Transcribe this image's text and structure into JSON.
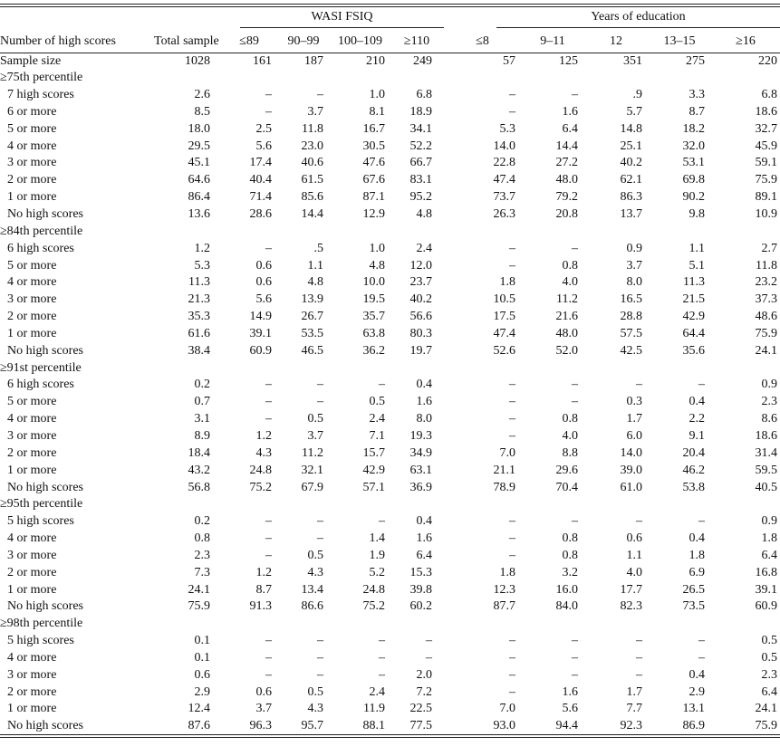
{
  "table": {
    "group_headers": [
      "WASI FSIQ",
      "Years of education"
    ],
    "columns": [
      "Number of high scores",
      "Total sample",
      "≤89",
      "90–99",
      "100–109",
      "≥110",
      "≤8",
      "9–11",
      "12",
      "13–15",
      "≥16"
    ],
    "sample_size": {
      "label": "Sample size",
      "values": [
        "1028",
        "161",
        "187",
        "210",
        "249",
        "57",
        "125",
        "351",
        "275",
        "220"
      ]
    },
    "sections": [
      {
        "title": "≥75th percentile",
        "rows": [
          {
            "label": "7 high scores",
            "values": [
              "2.6",
              "–",
              "–",
              "1.0",
              "6.8",
              "–",
              "–",
              ".9",
              "3.3",
              "6.8"
            ]
          },
          {
            "label": "6 or more",
            "values": [
              "8.5",
              "–",
              "3.7",
              "8.1",
              "18.9",
              "–",
              "1.6",
              "5.7",
              "8.7",
              "18.6"
            ]
          },
          {
            "label": "5 or more",
            "values": [
              "18.0",
              "2.5",
              "11.8",
              "16.7",
              "34.1",
              "5.3",
              "6.4",
              "14.8",
              "18.2",
              "32.7"
            ]
          },
          {
            "label": "4 or more",
            "values": [
              "29.5",
              "5.6",
              "23.0",
              "30.5",
              "52.2",
              "14.0",
              "14.4",
              "25.1",
              "32.0",
              "45.9"
            ]
          },
          {
            "label": "3 or more",
            "values": [
              "45.1",
              "17.4",
              "40.6",
              "47.6",
              "66.7",
              "22.8",
              "27.2",
              "40.2",
              "53.1",
              "59.1"
            ]
          },
          {
            "label": "2 or more",
            "values": [
              "64.6",
              "40.4",
              "61.5",
              "67.6",
              "83.1",
              "47.4",
              "48.0",
              "62.1",
              "69.8",
              "75.9"
            ]
          },
          {
            "label": "1 or more",
            "values": [
              "86.4",
              "71.4",
              "85.6",
              "87.1",
              "95.2",
              "73.7",
              "79.2",
              "86.3",
              "90.2",
              "89.1"
            ]
          },
          {
            "label": "No high scores",
            "values": [
              "13.6",
              "28.6",
              "14.4",
              "12.9",
              "4.8",
              "26.3",
              "20.8",
              "13.7",
              "9.8",
              "10.9"
            ]
          }
        ]
      },
      {
        "title": "≥84th percentile",
        "rows": [
          {
            "label": "6 high scores",
            "values": [
              "1.2",
              "–",
              ".5",
              "1.0",
              "2.4",
              "–",
              "–",
              "0.9",
              "1.1",
              "2.7"
            ]
          },
          {
            "label": "5 or more",
            "values": [
              "5.3",
              "0.6",
              "1.1",
              "4.8",
              "12.0",
              "–",
              "0.8",
              "3.7",
              "5.1",
              "11.8"
            ]
          },
          {
            "label": "4 or more",
            "values": [
              "11.3",
              "0.6",
              "4.8",
              "10.0",
              "23.7",
              "1.8",
              "4.0",
              "8.0",
              "11.3",
              "23.2"
            ]
          },
          {
            "label": "3 or more",
            "values": [
              "21.3",
              "5.6",
              "13.9",
              "19.5",
              "40.2",
              "10.5",
              "11.2",
              "16.5",
              "21.5",
              "37.3"
            ]
          },
          {
            "label": "2 or more",
            "values": [
              "35.3",
              "14.9",
              "26.7",
              "35.7",
              "56.6",
              "17.5",
              "21.6",
              "28.8",
              "42.9",
              "48.6"
            ]
          },
          {
            "label": "1 or more",
            "values": [
              "61.6",
              "39.1",
              "53.5",
              "63.8",
              "80.3",
              "47.4",
              "48.0",
              "57.5",
              "64.4",
              "75.9"
            ]
          },
          {
            "label": "No high scores",
            "values": [
              "38.4",
              "60.9",
              "46.5",
              "36.2",
              "19.7",
              "52.6",
              "52.0",
              "42.5",
              "35.6",
              "24.1"
            ]
          }
        ]
      },
      {
        "title": "≥91st percentile",
        "rows": [
          {
            "label": "6 high scores",
            "values": [
              "0.2",
              "–",
              "–",
              "–",
              "0.4",
              "–",
              "–",
              "–",
              "–",
              "0.9"
            ]
          },
          {
            "label": "5 or more",
            "values": [
              "0.7",
              "–",
              "–",
              "0.5",
              "1.6",
              "–",
              "–",
              "0.3",
              "0.4",
              "2.3"
            ]
          },
          {
            "label": "4 or more",
            "values": [
              "3.1",
              "–",
              "0.5",
              "2.4",
              "8.0",
              "–",
              "0.8",
              "1.7",
              "2.2",
              "8.6"
            ]
          },
          {
            "label": "3 or more",
            "values": [
              "8.9",
              "1.2",
              "3.7",
              "7.1",
              "19.3",
              "–",
              "4.0",
              "6.0",
              "9.1",
              "18.6"
            ]
          },
          {
            "label": "2 or more",
            "values": [
              "18.4",
              "4.3",
              "11.2",
              "15.7",
              "34.9",
              "7.0",
              "8.8",
              "14.0",
              "20.4",
              "31.4"
            ]
          },
          {
            "label": "1 or more",
            "values": [
              "43.2",
              "24.8",
              "32.1",
              "42.9",
              "63.1",
              "21.1",
              "29.6",
              "39.0",
              "46.2",
              "59.5"
            ]
          },
          {
            "label": "No high scores",
            "values": [
              "56.8",
              "75.2",
              "67.9",
              "57.1",
              "36.9",
              "78.9",
              "70.4",
              "61.0",
              "53.8",
              "40.5"
            ]
          }
        ]
      },
      {
        "title": "≥95th percentile",
        "rows": [
          {
            "label": "5 high scores",
            "values": [
              "0.2",
              "–",
              "–",
              "–",
              "0.4",
              "–",
              "–",
              "–",
              "–",
              "0.9"
            ]
          },
          {
            "label": "4 or more",
            "values": [
              "0.8",
              "–",
              "–",
              "1.4",
              "1.6",
              "–",
              "0.8",
              "0.6",
              "0.4",
              "1.8"
            ]
          },
          {
            "label": "3 or more",
            "values": [
              "2.3",
              "–",
              "0.5",
              "1.9",
              "6.4",
              "–",
              "0.8",
              "1.1",
              "1.8",
              "6.4"
            ]
          },
          {
            "label": "2 or more",
            "values": [
              "7.3",
              "1.2",
              "4.3",
              "5.2",
              "15.3",
              "1.8",
              "3.2",
              "4.0",
              "6.9",
              "16.8"
            ]
          },
          {
            "label": "1 or more",
            "values": [
              "24.1",
              "8.7",
              "13.4",
              "24.8",
              "39.8",
              "12.3",
              "16.0",
              "17.7",
              "26.5",
              "39.1"
            ]
          },
          {
            "label": "No high scores",
            "values": [
              "75.9",
              "91.3",
              "86.6",
              "75.2",
              "60.2",
              "87.7",
              "84.0",
              "82.3",
              "73.5",
              "60.9"
            ]
          }
        ]
      },
      {
        "title": "≥98th percentile",
        "rows": [
          {
            "label": "5 high scores",
            "values": [
              "0.1",
              "–",
              "–",
              "–",
              "–",
              "–",
              "–",
              "–",
              "–",
              "0.5"
            ]
          },
          {
            "label": "4 or more",
            "values": [
              "0.1",
              "–",
              "–",
              "–",
              "–",
              "–",
              "–",
              "–",
              "–",
              "0.5"
            ]
          },
          {
            "label": "3 or more",
            "values": [
              "0.6",
              "–",
              "–",
              "–",
              "2.0",
              "–",
              "–",
              "–",
              "0.4",
              "2.3"
            ]
          },
          {
            "label": "2 or more",
            "values": [
              "2.9",
              "0.6",
              "0.5",
              "2.4",
              "7.2",
              "–",
              "1.6",
              "1.7",
              "2.9",
              "6.4"
            ]
          },
          {
            "label": "1 or more",
            "values": [
              "12.4",
              "3.7",
              "4.3",
              "11.9",
              "22.5",
              "7.0",
              "5.6",
              "7.7",
              "13.1",
              "24.1"
            ]
          },
          {
            "label": "No high scores",
            "values": [
              "87.6",
              "96.3",
              "95.7",
              "88.1",
              "77.5",
              "93.0",
              "94.4",
              "92.3",
              "86.9",
              "75.9"
            ]
          }
        ]
      }
    ]
  }
}
